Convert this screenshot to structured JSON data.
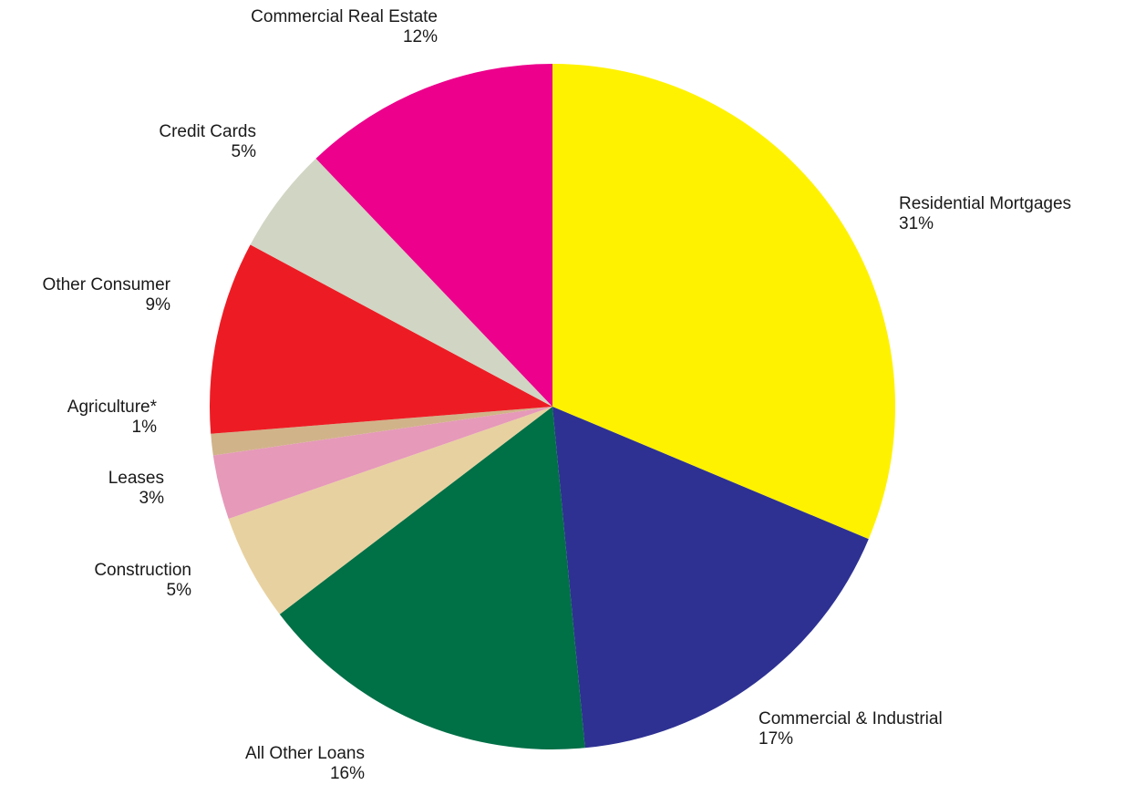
{
  "chart_data": {
    "type": "pie",
    "title": "",
    "slices": [
      {
        "label": "Residential Mortgages",
        "pct_label": "31%",
        "value": 31,
        "color": "#FFF200"
      },
      {
        "label": "Commercial & Industrial",
        "pct_label": "17%",
        "value": 17,
        "color": "#2E3192"
      },
      {
        "label": "All Other Loans",
        "pct_label": "16%",
        "value": 16,
        "color": "#007047"
      },
      {
        "label": "Construction",
        "pct_label": "5%",
        "value": 5,
        "color": "#E8D1A0"
      },
      {
        "label": "Leases",
        "pct_label": "3%",
        "value": 3,
        "color": "#E699B9"
      },
      {
        "label": "Agriculture*",
        "pct_label": "1%",
        "value": 1,
        "color": "#D1B38A"
      },
      {
        "label": "Other Consumer",
        "pct_label": "9%",
        "value": 9,
        "color": "#ED1C24"
      },
      {
        "label": "Credit Cards",
        "pct_label": "5%",
        "value": 5,
        "color": "#D1D5C4"
      },
      {
        "label": "Commercial Real Estate",
        "pct_label": "12%",
        "value": 12,
        "color": "#EC008C"
      }
    ],
    "start": "12 o'clock",
    "direction": "clockwise",
    "legend": "none"
  }
}
